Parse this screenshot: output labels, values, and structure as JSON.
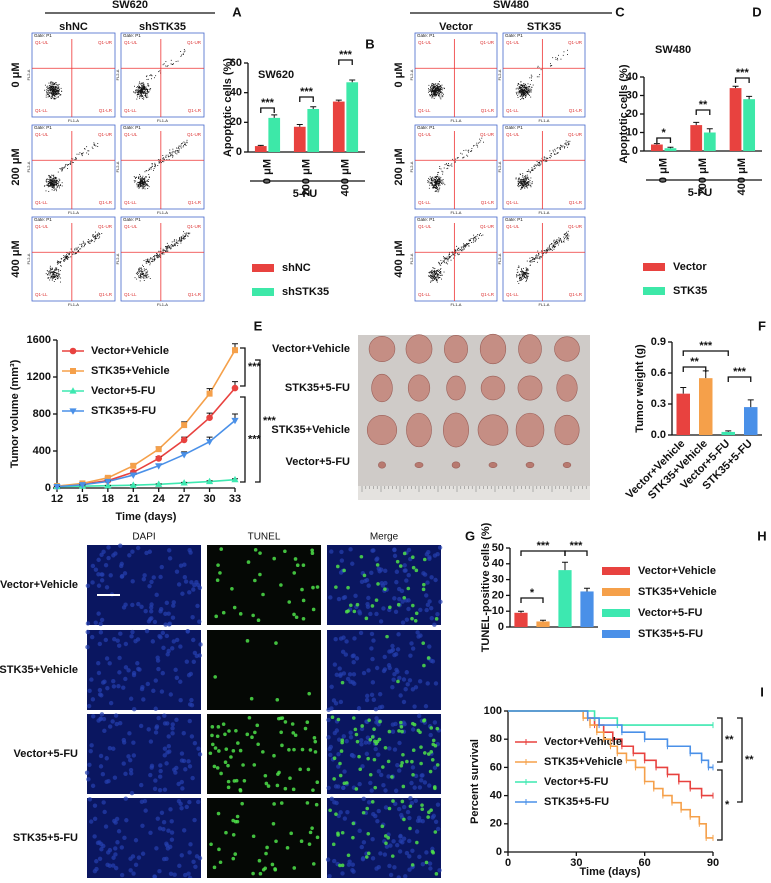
{
  "chart_data": [
    {
      "type": "bar",
      "panel_label": "B",
      "title": "SW620",
      "y_label": "Apoptotic cells (%)",
      "x_label": "5-FU",
      "categories": [
        "0 μM",
        "200 μM",
        "400 μM"
      ],
      "series": [
        {
          "name": "shNC",
          "color": "#e8423f",
          "values": [
            4,
            17,
            34
          ],
          "errors": [
            0.5,
            1.5,
            1
          ]
        },
        {
          "name": "shSTK35",
          "color": "#3de8a8",
          "values": [
            23,
            29,
            47
          ],
          "errors": [
            2,
            1.5,
            1.5
          ]
        }
      ],
      "ylim": [
        0,
        60
      ],
      "yticks": [
        0,
        20,
        40,
        60
      ],
      "significance": [
        "***",
        "***",
        "***"
      ]
    },
    {
      "type": "bar",
      "panel_label": "D",
      "title": "SW480",
      "y_label": "Apoptotic cells (%)",
      "x_label": "5-FU",
      "categories": [
        "0 μM",
        "200 μM",
        "400 μM"
      ],
      "series": [
        {
          "name": "Vector",
          "color": "#e8423f",
          "values": [
            3.5,
            14,
            34
          ],
          "errors": [
            0.5,
            1.5,
            1
          ]
        },
        {
          "name": "STK35",
          "color": "#3de8a8",
          "values": [
            1.5,
            10,
            28
          ],
          "errors": [
            0.5,
            2,
            1.5
          ]
        }
      ],
      "ylim": [
        0,
        40
      ],
      "yticks": [
        0,
        10,
        20,
        30,
        40
      ],
      "significance": [
        "*",
        "**",
        "***"
      ]
    },
    {
      "type": "line",
      "panel_label": "E",
      "y_label": "Tumor volume (mm³)",
      "x_label": "Time (days)",
      "x": [
        12,
        15,
        18,
        21,
        24,
        27,
        30,
        33
      ],
      "series": [
        {
          "name": "Vector+Vehicle",
          "color": "#e8423f",
          "marker": "circle",
          "values": [
            20,
            40,
            80,
            170,
            320,
            520,
            760,
            1080
          ],
          "errors": [
            5,
            8,
            10,
            15,
            20,
            30,
            50,
            70
          ]
        },
        {
          "name": "STK35+Vehicle",
          "color": "#f5a04a",
          "marker": "square",
          "values": [
            20,
            50,
            110,
            240,
            420,
            680,
            1020,
            1490
          ],
          "errors": [
            5,
            8,
            12,
            20,
            25,
            35,
            55,
            70
          ]
        },
        {
          "name": "Vector+5-FU",
          "color": "#3de8b0",
          "marker": "triangle-up",
          "values": [
            15,
            20,
            25,
            30,
            40,
            55,
            70,
            90
          ],
          "errors": [
            3,
            3,
            4,
            5,
            5,
            6,
            8,
            10
          ]
        },
        {
          "name": "STK35+5-FU",
          "color": "#4a90e8",
          "marker": "triangle-down",
          "values": [
            15,
            35,
            70,
            140,
            240,
            360,
            500,
            730
          ],
          "errors": [
            3,
            6,
            8,
            12,
            18,
            30,
            50,
            70
          ]
        }
      ],
      "xlim": [
        12,
        33
      ],
      "xticks": [
        12,
        15,
        18,
        21,
        24,
        27,
        30,
        33
      ],
      "ylim": [
        0,
        1600
      ],
      "yticks": [
        0,
        400,
        800,
        1200,
        1600
      ],
      "significance": [
        "***",
        "***",
        "***"
      ]
    },
    {
      "type": "bar",
      "panel_label": "F",
      "y_label": "Tumor weight (g)",
      "categories": [
        "Vector+Vehicle",
        "STK35+Vehicle",
        "Vector+5-FU",
        "STK35+5-FU"
      ],
      "colors": [
        "#e8423f",
        "#f5a04a",
        "#3de8b0",
        "#4a90e8"
      ],
      "values": [
        0.4,
        0.55,
        0.03,
        0.27
      ],
      "errors": [
        0.06,
        0.07,
        0.01,
        0.07
      ],
      "ylim": [
        0,
        0.9
      ],
      "yticks": [
        {
          "value": 0,
          "label": "0.0"
        },
        0.3,
        0.6,
        0.9
      ],
      "significance": [
        "**",
        "***",
        "***"
      ]
    },
    {
      "type": "bar",
      "panel_label": "H",
      "y_label": "TUNEL-positive cells (%)",
      "categories": [
        "Vector+Vehicle",
        "STK35+Vehicle",
        "Vector+5-FU",
        "STK35+5-FU"
      ],
      "colors": [
        "#e8423f",
        "#f5a04a",
        "#3de8b0",
        "#4a90e8"
      ],
      "values": [
        9,
        3.5,
        36,
        22.5
      ],
      "errors": [
        1,
        0.8,
        5,
        2
      ],
      "ylim": [
        0,
        50
      ],
      "yticks": [
        0,
        10,
        20,
        30,
        40,
        50
      ],
      "significance": [
        "*",
        "***",
        "***"
      ]
    },
    {
      "type": "line",
      "step": true,
      "panel_label": "I",
      "y_label": "Percent survival",
      "x_label": "Time (days)",
      "series": [
        {
          "name": "Vector+Vehicle",
          "color": "#e8423f",
          "x": [
            0,
            35,
            38,
            42,
            46,
            50,
            55,
            60,
            65,
            70,
            75,
            80,
            85,
            90
          ],
          "values": [
            100,
            95,
            90,
            85,
            80,
            75,
            70,
            65,
            60,
            55,
            50,
            45,
            40,
            40
          ]
        },
        {
          "name": "STK35+Vehicle",
          "color": "#f5a04a",
          "x": [
            0,
            33,
            36,
            39,
            42,
            45,
            48,
            52,
            56,
            60,
            64,
            68,
            72,
            76,
            80,
            84,
            87,
            90
          ],
          "values": [
            100,
            95,
            90,
            85,
            80,
            75,
            70,
            65,
            60,
            50,
            45,
            40,
            35,
            30,
            25,
            20,
            10,
            10
          ]
        },
        {
          "name": "Vector+5-FU",
          "color": "#3de8b0",
          "x": [
            0,
            38,
            48,
            90
          ],
          "values": [
            100,
            95,
            90,
            90
          ]
        },
        {
          "name": "STK35+5-FU",
          "color": "#4a90e8",
          "x": [
            0,
            35,
            40,
            50,
            60,
            70,
            80,
            85,
            88,
            90
          ],
          "values": [
            100,
            95,
            90,
            85,
            80,
            75,
            70,
            65,
            60,
            60
          ]
        }
      ],
      "xlim": [
        0,
        90
      ],
      "xticks": [
        0,
        30,
        60,
        90
      ],
      "ylim": [
        0,
        100
      ],
      "yticks": [
        0,
        20,
        40,
        60,
        80,
        100
      ],
      "significance": [
        "**",
        "**",
        "*"
      ]
    }
  ],
  "figure": {
    "flow": {
      "gate": "Gate: P1",
      "x_axis": "FL1-A",
      "y_axis": "FL2-A",
      "quadrants": [
        "Q1-UL",
        "Q1-UR",
        "Q1-LL",
        "Q1-LR"
      ]
    },
    "panel_a": {
      "letter": "A",
      "cell_line": "SW620",
      "columns": [
        "shNC",
        "shSTK35"
      ],
      "rows": [
        "0 μM",
        "200 μM",
        "400 μM"
      ]
    },
    "panel_c": {
      "letter": "C",
      "cell_line": "SW480",
      "columns": [
        "Vector",
        "STK35"
      ],
      "rows": [
        "0 μM",
        "200 μM",
        "400 μM"
      ]
    },
    "tumor_photo": {
      "rows": [
        "Vector+Vehicle",
        "STK35+5-FU",
        "STK35+Vehicle",
        "Vector+5-FU"
      ]
    },
    "panel_g": {
      "letter": "G",
      "columns": [
        "DAPI",
        "TUNEL",
        "Merge"
      ],
      "rows": [
        "Vector+Vehicle",
        "STK35+Vehicle",
        "Vector+5-FU",
        "STK35+5-FU"
      ]
    }
  }
}
